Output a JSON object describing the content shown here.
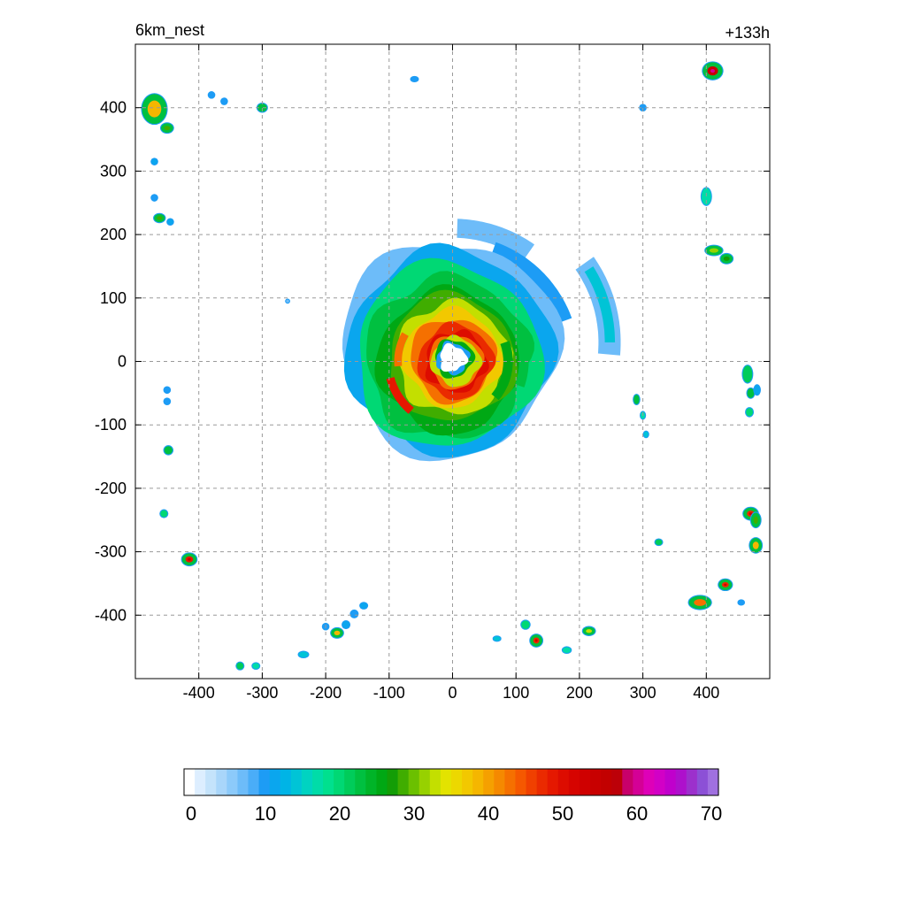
{
  "chart_data": {
    "type": "heatmap",
    "title_left": "6km_nest",
    "title_right": "+133h",
    "xlabel": "",
    "ylabel": "",
    "xlim": [
      -500,
      500
    ],
    "ylim": [
      -500,
      500
    ],
    "x_ticks": [
      -400,
      -300,
      -200,
      -100,
      0,
      100,
      200,
      300,
      400
    ],
    "y_ticks": [
      400,
      300,
      200,
      100,
      0,
      -100,
      -200,
      -300,
      -400
    ],
    "x_tick_labels": [
      "-400",
      "-300",
      "-200",
      "-100",
      "0",
      "100",
      "200",
      "300",
      "400"
    ],
    "y_tick_labels": [
      "400",
      "300",
      "200",
      "100",
      "0",
      "-100",
      "-200",
      "-300",
      "-400"
    ],
    "grid": true,
    "colorbar": {
      "min": 0,
      "max": 72,
      "ticks": [
        0,
        10,
        20,
        30,
        40,
        50,
        60,
        70
      ],
      "tick_labels": [
        "0",
        "10",
        "20",
        "30",
        "40",
        "50",
        "60",
        "70"
      ],
      "colors": [
        "#ffffff",
        "#ddeeff",
        "#c4e3fb",
        "#a9d6fa",
        "#8ccafa",
        "#6dbcf9",
        "#4aadf8",
        "#1d9cf5",
        "#0aa6ee",
        "#00b4e6",
        "#00c4d6",
        "#00d3c1",
        "#00dca8",
        "#00e08e",
        "#00d874",
        "#00cc5a",
        "#00c040",
        "#00b428",
        "#00a814",
        "#139d06",
        "#40ad00",
        "#6bc000",
        "#97d100",
        "#c3df00",
        "#e3e300",
        "#ecd800",
        "#f2c800",
        "#f5b600",
        "#f5a000",
        "#f58900",
        "#f57000",
        "#f55800",
        "#f04000",
        "#ea2a00",
        "#e51800",
        "#dd0c00",
        "#d60400",
        "#cf0000",
        "#c80000",
        "#c20000",
        "#bc0008",
        "#c8006a",
        "#d40096",
        "#de00b8",
        "#d200c6",
        "#c000cc",
        "#ae10cc",
        "#9c30cc",
        "#8c50d6",
        "#a070e0"
      ]
    },
    "field_description_values": {
      "center": [
        0,
        0
      ],
      "eye_radius_km": 35,
      "max_value": 55
    }
  }
}
